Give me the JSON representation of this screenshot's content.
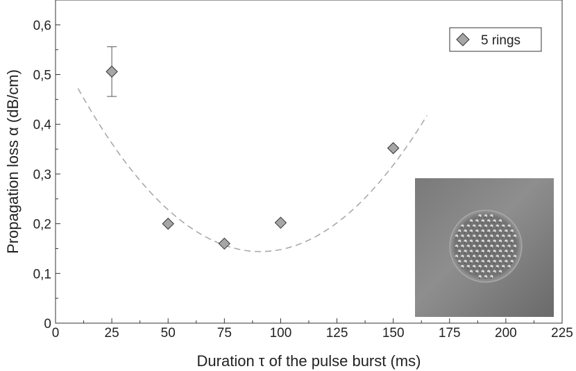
{
  "chart_data": {
    "type": "scatter",
    "xlabel": "Duration τ of the pulse burst (ms)",
    "ylabel": "Propagation loss α (dB/cm)",
    "xlim": [
      0,
      225
    ],
    "ylim": [
      0,
      0.65
    ],
    "x_ticks": [
      0,
      25,
      50,
      75,
      100,
      125,
      150,
      175,
      200,
      225
    ],
    "x_tick_labels": [
      "0",
      "25",
      "50",
      "75",
      "100",
      "125",
      "150",
      "175",
      "200",
      "225"
    ],
    "y_ticks": [
      0,
      0.1,
      0.2,
      0.3,
      0.4,
      0.5,
      0.6
    ],
    "y_tick_labels": [
      "0",
      "0,1",
      "0,2",
      "0,3",
      "0,4",
      "0,5",
      "0,6"
    ],
    "grid": false,
    "legend_position": "top-right",
    "series": [
      {
        "name": "5 rings",
        "marker": "diamond",
        "color": "#a6a6a6",
        "points": [
          {
            "x": 25,
            "y": 0.506,
            "err_low": 0.456,
            "err_high": 0.556
          },
          {
            "x": 50,
            "y": 0.2
          },
          {
            "x": 75,
            "y": 0.16
          },
          {
            "x": 100,
            "y": 0.202
          },
          {
            "x": 150,
            "y": 0.352
          }
        ]
      }
    ],
    "fit_curve": {
      "style": "dashed",
      "color": "#a9a9a9",
      "x_range": [
        10,
        165
      ],
      "vertex_x": 91,
      "vertex_y": 0.144,
      "coefficient": 5e-05
    },
    "inset_image": "fiber cross-section micrograph"
  }
}
